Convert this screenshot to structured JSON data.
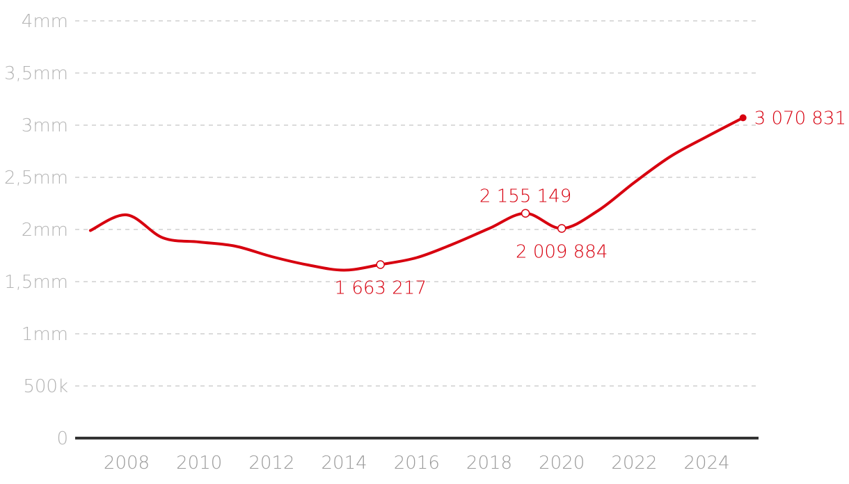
{
  "chart_data": {
    "type": "line",
    "title": "",
    "xlabel": "",
    "ylabel": "",
    "xlim": [
      2007,
      2025.5
    ],
    "ylim": [
      0,
      4000000
    ],
    "y_ticks": [
      {
        "value": 0,
        "label": "0"
      },
      {
        "value": 500000,
        "label": "500k"
      },
      {
        "value": 1000000,
        "label": "1mm"
      },
      {
        "value": 1500000,
        "label": "1,5mm"
      },
      {
        "value": 2000000,
        "label": "2mm"
      },
      {
        "value": 2500000,
        "label": "2,5mm"
      },
      {
        "value": 3000000,
        "label": "3mm"
      },
      {
        "value": 3500000,
        "label": "3,5mm"
      },
      {
        "value": 4000000,
        "label": "4mm"
      }
    ],
    "x_ticks": [
      {
        "value": 2008,
        "label": "2008"
      },
      {
        "value": 2010,
        "label": "2010"
      },
      {
        "value": 2012,
        "label": "2012"
      },
      {
        "value": 2014,
        "label": "2014"
      },
      {
        "value": 2016,
        "label": "2016"
      },
      {
        "value": 2018,
        "label": "2018"
      },
      {
        "value": 2020,
        "label": "2020"
      },
      {
        "value": 2022,
        "label": "2022"
      },
      {
        "value": 2024,
        "label": "2024"
      }
    ],
    "grid": true,
    "series": [
      {
        "color": "#d7000f",
        "x": [
          2007,
          2008,
          2009,
          2010,
          2011,
          2012,
          2013,
          2014,
          2015,
          2016,
          2017,
          2018,
          2019,
          2020,
          2021,
          2022,
          2023,
          2024,
          2025
        ],
        "y": [
          1990000,
          2140000,
          1920000,
          1880000,
          1840000,
          1740000,
          1660000,
          1610000,
          1663217,
          1730000,
          1860000,
          2010000,
          2155149,
          2009884,
          2180000,
          2450000,
          2700000,
          2890000,
          3070831
        ]
      }
    ],
    "annotations": [
      {
        "x": 2015,
        "y": 1663217,
        "text": "1 663 217",
        "marker": "hollow",
        "position": "below"
      },
      {
        "x": 2019,
        "y": 2155149,
        "text": "2 155 149",
        "marker": "hollow",
        "position": "above"
      },
      {
        "x": 2020,
        "y": 2009884,
        "text": "2 009 884",
        "marker": "hollow",
        "position": "below"
      },
      {
        "x": 2025,
        "y": 3070831,
        "text": "3 070 831",
        "marker": "filled",
        "position": "right"
      }
    ]
  }
}
